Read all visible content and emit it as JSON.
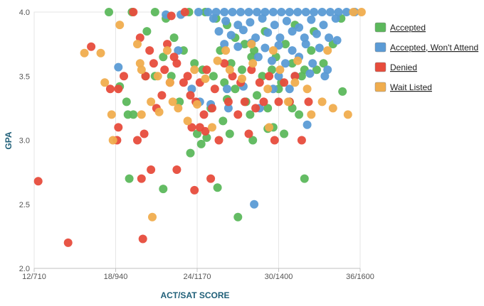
{
  "chart_data": {
    "type": "scatter",
    "title": "",
    "xlabel": "ACT/SAT SCORE",
    "ylabel": "GPA",
    "xlim": [
      12,
      36
    ],
    "ylim": [
      2.0,
      4.0
    ],
    "x_ticks": [
      {
        "value": 12,
        "label": "12/710"
      },
      {
        "value": 18,
        "label": "18/940"
      },
      {
        "value": 24,
        "label": "24/1170"
      },
      {
        "value": 30,
        "label": "30/1400"
      },
      {
        "value": 36,
        "label": "36/1600"
      }
    ],
    "y_ticks": [
      {
        "value": 2.0,
        "label": "2.0"
      },
      {
        "value": 2.5,
        "label": "2.5"
      },
      {
        "value": 3.0,
        "label": "3.0"
      },
      {
        "value": 3.5,
        "label": "3.5"
      },
      {
        "value": 4.0,
        "label": "4.0"
      }
    ],
    "grid": "vertical",
    "legend_position": "right",
    "series": [
      {
        "name": "Accepted",
        "color": "#5cb85c",
        "points": [
          [
            17.5,
            4.0
          ],
          [
            19.2,
            4.0
          ],
          [
            20.9,
            4.0
          ],
          [
            23.4,
            4.0
          ],
          [
            24.6,
            4.0
          ],
          [
            25.4,
            3.95
          ],
          [
            26.2,
            3.9
          ],
          [
            26.8,
            3.8
          ],
          [
            27.5,
            3.75
          ],
          [
            28.2,
            3.7
          ],
          [
            29.0,
            3.85
          ],
          [
            29.8,
            3.65
          ],
          [
            30.5,
            3.75
          ],
          [
            31.2,
            3.9
          ],
          [
            31.9,
            3.55
          ],
          [
            32.6,
            3.85
          ],
          [
            33.3,
            3.6
          ],
          [
            34.0,
            3.75
          ],
          [
            34.6,
            3.95
          ],
          [
            25.7,
            3.7
          ],
          [
            26.5,
            3.6
          ],
          [
            27.3,
            3.55
          ],
          [
            28.0,
            3.65
          ],
          [
            28.8,
            3.5
          ],
          [
            29.5,
            3.55
          ],
          [
            30.2,
            3.45
          ],
          [
            31.0,
            3.6
          ],
          [
            31.7,
            3.5
          ],
          [
            32.4,
            3.7
          ],
          [
            24.4,
            3.55
          ],
          [
            25.2,
            3.5
          ],
          [
            26.0,
            3.45
          ],
          [
            26.8,
            3.4
          ],
          [
            27.6,
            3.3
          ],
          [
            28.4,
            3.35
          ],
          [
            29.2,
            3.25
          ],
          [
            30.0,
            3.4
          ],
          [
            30.8,
            3.3
          ],
          [
            22.3,
            3.8
          ],
          [
            23.0,
            3.7
          ],
          [
            23.8,
            3.6
          ],
          [
            21.5,
            3.65
          ],
          [
            22.1,
            3.5
          ],
          [
            20.9,
            3.5
          ],
          [
            20.3,
            3.85
          ],
          [
            21.7,
            3.95
          ],
          [
            22.7,
            3.3
          ],
          [
            18.3,
            3.42
          ],
          [
            18.8,
            3.3
          ],
          [
            18.9,
            3.2
          ],
          [
            19.3,
            3.2
          ],
          [
            20.2,
            3.5
          ],
          [
            25.0,
            3.25
          ],
          [
            25.9,
            3.15
          ],
          [
            27.9,
            3.2
          ],
          [
            29.6,
            3.1
          ],
          [
            30.4,
            3.05
          ],
          [
            31.5,
            3.2
          ],
          [
            31.0,
            3.25
          ],
          [
            23.5,
            2.9
          ],
          [
            24.3,
            2.97
          ],
          [
            24.7,
            3.02
          ],
          [
            25.5,
            2.63
          ],
          [
            26.2,
            3.32
          ],
          [
            27.0,
            2.4
          ],
          [
            28.1,
            3.0
          ],
          [
            29.2,
            3.09
          ],
          [
            31.9,
            2.7
          ],
          [
            34.7,
            3.38
          ],
          [
            19.0,
            2.7
          ],
          [
            21.5,
            2.62
          ],
          [
            24.0,
            3.05
          ],
          [
            26.4,
            3.05
          ],
          [
            32.8,
            3.55
          ]
        ]
      },
      {
        "name": "Accepted, Won't Attend",
        "color": "#5b9bd5",
        "points": [
          [
            24.1,
            4.0
          ],
          [
            24.8,
            4.0
          ],
          [
            25.4,
            4.0
          ],
          [
            26.0,
            4.0
          ],
          [
            26.6,
            4.0
          ],
          [
            27.2,
            4.0
          ],
          [
            27.8,
            4.0
          ],
          [
            28.4,
            4.0
          ],
          [
            29.0,
            4.0
          ],
          [
            29.6,
            4.0
          ],
          [
            30.2,
            4.0
          ],
          [
            30.8,
            4.0
          ],
          [
            31.4,
            4.0
          ],
          [
            32.0,
            4.0
          ],
          [
            32.6,
            4.0
          ],
          [
            33.2,
            4.0
          ],
          [
            33.8,
            4.0
          ],
          [
            34.4,
            4.0
          ],
          [
            35.0,
            4.0
          ],
          [
            35.6,
            4.0
          ],
          [
            25.2,
            3.95
          ],
          [
            26.1,
            3.93
          ],
          [
            27.0,
            3.9
          ],
          [
            27.9,
            3.92
          ],
          [
            28.8,
            3.95
          ],
          [
            29.7,
            3.9
          ],
          [
            30.6,
            3.93
          ],
          [
            31.5,
            3.88
          ],
          [
            32.4,
            3.94
          ],
          [
            33.3,
            3.9
          ],
          [
            34.2,
            3.95
          ],
          [
            25.6,
            3.85
          ],
          [
            26.5,
            3.82
          ],
          [
            27.4,
            3.86
          ],
          [
            28.3,
            3.8
          ],
          [
            29.2,
            3.84
          ],
          [
            30.1,
            3.8
          ],
          [
            31.0,
            3.85
          ],
          [
            31.9,
            3.8
          ],
          [
            32.8,
            3.83
          ],
          [
            33.7,
            3.8
          ],
          [
            26.0,
            3.75
          ],
          [
            27.0,
            3.73
          ],
          [
            28.0,
            3.76
          ],
          [
            29.0,
            3.72
          ],
          [
            30.0,
            3.74
          ],
          [
            31.0,
            3.7
          ],
          [
            32.0,
            3.75
          ],
          [
            33.0,
            3.72
          ],
          [
            34.3,
            3.78
          ],
          [
            28.5,
            3.65
          ],
          [
            29.5,
            3.62
          ],
          [
            30.5,
            3.6
          ],
          [
            31.5,
            3.65
          ],
          [
            32.5,
            3.6
          ],
          [
            33.6,
            3.55
          ],
          [
            30.0,
            3.5
          ],
          [
            31.2,
            3.5
          ],
          [
            32.3,
            3.52
          ],
          [
            26.2,
            3.4
          ],
          [
            27.4,
            3.42
          ],
          [
            29.6,
            3.4
          ],
          [
            30.8,
            3.4
          ],
          [
            22.8,
            3.98
          ],
          [
            21.7,
            3.98
          ],
          [
            25.0,
            3.28
          ],
          [
            26.3,
            3.25
          ],
          [
            28.6,
            3.25
          ],
          [
            18.2,
            3.57
          ],
          [
            22.6,
            3.7
          ],
          [
            23.6,
            3.4
          ],
          [
            24.2,
            3.3
          ],
          [
            33.4,
            3.5
          ],
          [
            32.1,
            3.12
          ],
          [
            28.2,
            2.5
          ]
        ]
      },
      {
        "name": "Denied",
        "color": "#e74c3c",
        "points": [
          [
            12.3,
            2.68
          ],
          [
            14.5,
            2.2
          ],
          [
            16.2,
            3.73
          ],
          [
            17.6,
            3.4
          ],
          [
            18.2,
            3.4
          ],
          [
            18.6,
            3.5
          ],
          [
            18.2,
            3.1
          ],
          [
            18.1,
            3.0
          ],
          [
            19.6,
            3.0
          ],
          [
            20.1,
            3.05
          ],
          [
            20.2,
            3.5
          ],
          [
            20.0,
            2.23
          ],
          [
            19.9,
            2.7
          ],
          [
            20.6,
            2.77
          ],
          [
            21.4,
            3.35
          ],
          [
            22.5,
            2.77
          ],
          [
            23.8,
            2.61
          ],
          [
            23.6,
            3.1
          ],
          [
            24.2,
            3.1
          ],
          [
            24.6,
            3.07
          ],
          [
            25.0,
            2.7
          ],
          [
            19.3,
            4.0
          ],
          [
            19.8,
            3.8
          ],
          [
            20.5,
            3.7
          ],
          [
            21.0,
            3.25
          ],
          [
            21.8,
            3.75
          ],
          [
            22.3,
            3.65
          ],
          [
            22.5,
            3.6
          ],
          [
            23.0,
            3.45
          ],
          [
            23.3,
            3.5
          ],
          [
            23.5,
            3.35
          ],
          [
            23.9,
            3.3
          ],
          [
            24.2,
            3.45
          ],
          [
            24.5,
            3.2
          ],
          [
            24.7,
            3.55
          ],
          [
            25.1,
            3.25
          ],
          [
            25.3,
            3.4
          ],
          [
            25.6,
            3.0
          ],
          [
            26.0,
            3.6
          ],
          [
            26.3,
            3.3
          ],
          [
            26.6,
            3.5
          ],
          [
            27.0,
            3.2
          ],
          [
            27.2,
            3.45
          ],
          [
            27.5,
            3.3
          ],
          [
            27.8,
            3.05
          ],
          [
            28.0,
            3.55
          ],
          [
            28.3,
            3.25
          ],
          [
            28.6,
            3.45
          ],
          [
            28.9,
            3.3
          ],
          [
            29.3,
            3.5
          ],
          [
            29.7,
            3.0
          ],
          [
            30.0,
            3.3
          ],
          [
            30.4,
            3.45
          ],
          [
            30.8,
            3.3
          ],
          [
            31.2,
            3.5
          ],
          [
            31.7,
            3.0
          ],
          [
            32.2,
            3.3
          ],
          [
            21.6,
            3.55
          ],
          [
            22.0,
            3.45
          ],
          [
            20.8,
            3.6
          ],
          [
            23.1,
            4.0
          ],
          [
            22.1,
            3.97
          ]
        ]
      },
      {
        "name": "Wait Listed",
        "color": "#f0ad4e",
        "points": [
          [
            15.7,
            3.68
          ],
          [
            16.9,
            3.68
          ],
          [
            17.2,
            3.45
          ],
          [
            17.7,
            3.2
          ],
          [
            17.8,
            3.0
          ],
          [
            18.3,
            3.9
          ],
          [
            19.6,
            3.75
          ],
          [
            19.8,
            3.6
          ],
          [
            19.9,
            3.2
          ],
          [
            20.6,
            3.3
          ],
          [
            21.2,
            3.22
          ],
          [
            21.8,
            3.7
          ],
          [
            22.2,
            3.3
          ],
          [
            22.6,
            3.25
          ],
          [
            23.3,
            3.15
          ],
          [
            24.0,
            3.28
          ],
          [
            25.1,
            3.1
          ],
          [
            20.7,
            2.4
          ],
          [
            19.9,
            3.55
          ],
          [
            21.1,
            3.5
          ],
          [
            22.0,
            3.45
          ],
          [
            23.8,
            3.55
          ],
          [
            24.6,
            3.48
          ],
          [
            25.5,
            3.62
          ],
          [
            26.4,
            3.55
          ],
          [
            27.3,
            3.48
          ],
          [
            28.1,
            3.6
          ],
          [
            29.2,
            3.4
          ],
          [
            30.1,
            3.55
          ],
          [
            31.2,
            3.45
          ],
          [
            32.1,
            3.4
          ],
          [
            33.2,
            3.3
          ],
          [
            34.0,
            3.25
          ],
          [
            35.1,
            3.2
          ],
          [
            26.1,
            3.7
          ],
          [
            28.0,
            3.75
          ],
          [
            29.6,
            3.7
          ],
          [
            31.4,
            3.62
          ],
          [
            33.6,
            3.7
          ],
          [
            35.5,
            4.0
          ],
          [
            36.1,
            4.0
          ],
          [
            29.3,
            3.1
          ],
          [
            30.7,
            3.3
          ],
          [
            32.4,
            3.2
          ]
        ]
      }
    ]
  }
}
